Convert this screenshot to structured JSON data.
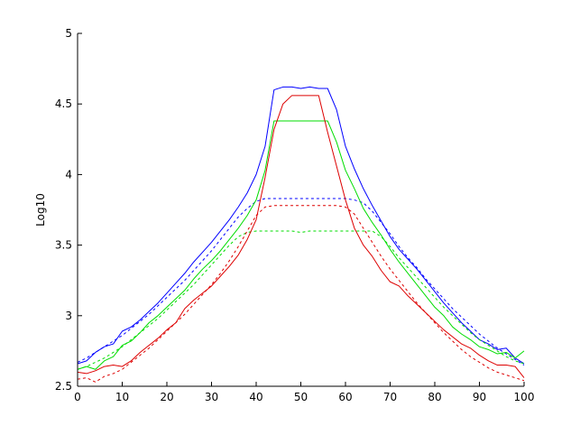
{
  "chart_data": {
    "type": "line",
    "title": "",
    "xlabel": "",
    "ylabel": "Log10",
    "xlim": [
      0,
      100
    ],
    "ylim": [
      2.5,
      5
    ],
    "grid": false,
    "x_ticks": [
      0,
      10,
      20,
      30,
      40,
      50,
      60,
      70,
      80,
      90,
      100
    ],
    "x_tick_labels": [
      "0",
      "10",
      "20",
      "30",
      "40",
      "50",
      "60",
      "70",
      "80",
      "90",
      "100"
    ],
    "y_ticks": [
      2.5,
      3,
      3.5,
      4,
      4.5,
      5
    ],
    "y_tick_labels": [
      "2.5",
      "3",
      "3.5",
      "4",
      "4.5",
      "5"
    ],
    "series": [
      {
        "color": "#0000ff",
        "style": "solid",
        "x": [
          0,
          2,
          4,
          6,
          8,
          10,
          12,
          14,
          16,
          18,
          20,
          22,
          24,
          26,
          28,
          30,
          32,
          34,
          36,
          38,
          40,
          42,
          44,
          46,
          48,
          50,
          52,
          54,
          56,
          58,
          60,
          62,
          64,
          66,
          68,
          70,
          72,
          74,
          76,
          78,
          80,
          82,
          84,
          86,
          88,
          90,
          92,
          94,
          96,
          98,
          100
        ],
        "y": [
          2.66,
          2.68,
          2.74,
          2.78,
          2.8,
          2.89,
          2.92,
          2.97,
          3.03,
          3.09,
          3.16,
          3.23,
          3.3,
          3.38,
          3.45,
          3.52,
          3.6,
          3.68,
          3.77,
          3.87,
          4.0,
          4.2,
          4.6,
          4.62,
          4.62,
          4.61,
          4.62,
          4.61,
          4.61,
          4.46,
          4.2,
          4.04,
          3.9,
          3.78,
          3.67,
          3.56,
          3.47,
          3.4,
          3.33,
          3.25,
          3.17,
          3.09,
          3.02,
          2.95,
          2.89,
          2.83,
          2.8,
          2.76,
          2.77,
          2.7,
          2.66
        ]
      },
      {
        "color": "#0000ff",
        "style": "dashed",
        "x": [
          0,
          2,
          4,
          6,
          8,
          10,
          12,
          14,
          16,
          18,
          20,
          22,
          24,
          26,
          28,
          30,
          32,
          34,
          36,
          38,
          40,
          42,
          44,
          46,
          48,
          50,
          52,
          54,
          56,
          58,
          60,
          62,
          64,
          66,
          68,
          70,
          72,
          74,
          76,
          78,
          80,
          82,
          84,
          86,
          88,
          90,
          92,
          94,
          96,
          98,
          100
        ],
        "y": [
          2.67,
          2.7,
          2.74,
          2.78,
          2.82,
          2.86,
          2.91,
          2.96,
          3.01,
          3.07,
          3.13,
          3.19,
          3.25,
          3.32,
          3.39,
          3.46,
          3.54,
          3.62,
          3.7,
          3.76,
          3.81,
          3.83,
          3.83,
          3.83,
          3.83,
          3.83,
          3.83,
          3.83,
          3.83,
          3.83,
          3.83,
          3.82,
          3.8,
          3.74,
          3.66,
          3.58,
          3.49,
          3.41,
          3.34,
          3.26,
          3.19,
          3.12,
          3.05,
          2.99,
          2.93,
          2.87,
          2.82,
          2.77,
          2.73,
          2.69,
          2.65
        ]
      },
      {
        "color": "#00dd00",
        "style": "solid",
        "x": [
          0,
          2,
          4,
          6,
          8,
          10,
          12,
          14,
          16,
          18,
          20,
          22,
          24,
          26,
          28,
          30,
          32,
          34,
          36,
          38,
          40,
          42,
          44,
          46,
          48,
          50,
          52,
          54,
          56,
          58,
          60,
          62,
          64,
          66,
          68,
          70,
          72,
          74,
          76,
          78,
          80,
          82,
          84,
          86,
          88,
          90,
          92,
          94,
          96,
          98,
          100
        ],
        "y": [
          2.62,
          2.64,
          2.62,
          2.68,
          2.71,
          2.79,
          2.82,
          2.88,
          2.95,
          3.0,
          3.06,
          3.12,
          3.18,
          3.26,
          3.33,
          3.39,
          3.46,
          3.54,
          3.62,
          3.71,
          3.82,
          4.03,
          4.38,
          4.38,
          4.38,
          4.38,
          4.38,
          4.38,
          4.38,
          4.23,
          4.03,
          3.9,
          3.76,
          3.66,
          3.57,
          3.47,
          3.38,
          3.3,
          3.22,
          3.14,
          3.06,
          3.0,
          2.92,
          2.87,
          2.83,
          2.78,
          2.76,
          2.73,
          2.74,
          2.7,
          2.75
        ]
      },
      {
        "color": "#00dd00",
        "style": "dashed",
        "x": [
          0,
          2,
          4,
          6,
          8,
          10,
          12,
          14,
          16,
          18,
          20,
          22,
          24,
          26,
          28,
          30,
          32,
          34,
          36,
          38,
          40,
          42,
          44,
          46,
          48,
          50,
          52,
          54,
          56,
          58,
          60,
          62,
          64,
          66,
          68,
          70,
          72,
          74,
          76,
          78,
          80,
          82,
          84,
          86,
          88,
          90,
          92,
          94,
          96,
          98,
          100
        ],
        "y": [
          2.62,
          2.64,
          2.67,
          2.7,
          2.74,
          2.78,
          2.83,
          2.88,
          2.93,
          2.98,
          3.04,
          3.1,
          3.16,
          3.22,
          3.29,
          3.36,
          3.43,
          3.5,
          3.56,
          3.59,
          3.6,
          3.6,
          3.6,
          3.6,
          3.6,
          3.59,
          3.6,
          3.6,
          3.6,
          3.6,
          3.6,
          3.6,
          3.6,
          3.6,
          3.56,
          3.49,
          3.41,
          3.34,
          3.27,
          3.2,
          3.13,
          3.06,
          3.0,
          2.94,
          2.88,
          2.83,
          2.79,
          2.75,
          2.71,
          2.68,
          2.66
        ]
      },
      {
        "color": "#dd0000",
        "style": "solid",
        "x": [
          0,
          2,
          4,
          6,
          8,
          10,
          12,
          14,
          16,
          18,
          20,
          22,
          24,
          26,
          28,
          30,
          32,
          34,
          36,
          38,
          40,
          42,
          44,
          46,
          48,
          50,
          52,
          54,
          56,
          58,
          60,
          62,
          64,
          66,
          68,
          70,
          72,
          74,
          76,
          78,
          80,
          82,
          84,
          86,
          88,
          90,
          92,
          94,
          96,
          98,
          100
        ],
        "y": [
          2.6,
          2.59,
          2.61,
          2.64,
          2.65,
          2.64,
          2.68,
          2.74,
          2.79,
          2.84,
          2.9,
          2.95,
          3.05,
          3.11,
          3.16,
          3.21,
          3.28,
          3.35,
          3.43,
          3.54,
          3.68,
          3.98,
          4.32,
          4.5,
          4.56,
          4.56,
          4.56,
          4.56,
          4.3,
          4.06,
          3.82,
          3.62,
          3.5,
          3.42,
          3.32,
          3.24,
          3.21,
          3.14,
          3.08,
          3.02,
          2.96,
          2.9,
          2.85,
          2.8,
          2.77,
          2.72,
          2.68,
          2.65,
          2.65,
          2.64,
          2.56
        ]
      },
      {
        "color": "#dd0000",
        "style": "dashed",
        "x": [
          0,
          2,
          4,
          6,
          8,
          10,
          12,
          14,
          16,
          18,
          20,
          22,
          24,
          26,
          28,
          30,
          32,
          34,
          36,
          38,
          40,
          42,
          44,
          46,
          48,
          50,
          52,
          54,
          56,
          58,
          60,
          62,
          64,
          66,
          68,
          70,
          72,
          74,
          76,
          78,
          80,
          82,
          84,
          86,
          88,
          90,
          92,
          94,
          96,
          98,
          100
        ],
        "y": [
          2.55,
          2.56,
          2.53,
          2.57,
          2.59,
          2.62,
          2.67,
          2.72,
          2.77,
          2.83,
          2.89,
          2.95,
          3.01,
          3.08,
          3.15,
          3.22,
          3.3,
          3.39,
          3.49,
          3.6,
          3.71,
          3.77,
          3.78,
          3.78,
          3.78,
          3.78,
          3.78,
          3.78,
          3.78,
          3.78,
          3.77,
          3.72,
          3.62,
          3.52,
          3.42,
          3.33,
          3.25,
          3.17,
          3.09,
          3.02,
          2.95,
          2.88,
          2.82,
          2.76,
          2.71,
          2.67,
          2.63,
          2.6,
          2.58,
          2.56,
          2.54
        ]
      }
    ]
  }
}
